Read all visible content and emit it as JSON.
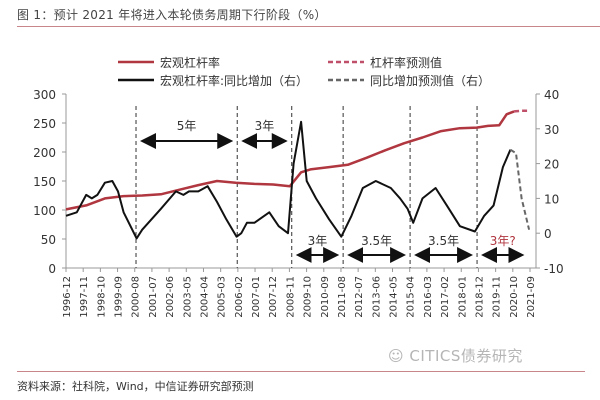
{
  "title": "图 1：预计 2021 年将进入本轮债务周期下行阶段（%）",
  "source": "资料来源：社科院，Wind，中信证券研究部预测",
  "watermark": "CITICS债券研究",
  "colors": {
    "leverage": "#b0363f",
    "leverage_forecast": "#c0506a",
    "yoy": "#111111",
    "yoy_forecast": "#666666",
    "axis": "#999999",
    "rule": "#c9868a"
  },
  "legend": [
    {
      "label": "宏观杠杆率",
      "style": "solid",
      "color": "#b0363f"
    },
    {
      "label": "杠杆率预测值",
      "style": "dashed",
      "color": "#c0506a"
    },
    {
      "label": "宏观杠杆率:同比增加（右）",
      "style": "solid",
      "color": "#111111"
    },
    {
      "label": "同比增加预测值（右）",
      "style": "dashed",
      "color": "#666666"
    }
  ],
  "chart_data": {
    "type": "line",
    "title": "预计 2021 年将进入本轮债务周期下行阶段（%）",
    "xlabel": "",
    "ylabel_left": "%",
    "ylabel_right": "%",
    "ylim_left": [
      0,
      300
    ],
    "ylim_right": [
      -10,
      40
    ],
    "yticks_left": [
      0,
      50,
      100,
      150,
      200,
      250,
      300
    ],
    "yticks_right": [
      -10,
      0,
      10,
      20,
      30,
      40
    ],
    "x_tick_labels": [
      "1996-12",
      "1997-11",
      "1998-10",
      "1999-09",
      "2000-08",
      "2001-07",
      "2002-06",
      "2003-05",
      "2004-04",
      "2005-03",
      "2006-02",
      "2007-01",
      "2007-12",
      "2008-11",
      "2009-10",
      "2010-09",
      "2011-08",
      "2012-07",
      "2013-06",
      "2014-05",
      "2015-04",
      "2016-03",
      "2017-02",
      "2018-01",
      "2018-12",
      "2019-11",
      "2020-10",
      "2021-09"
    ],
    "grid": false,
    "legend_position": "top",
    "series": [
      {
        "name": "宏观杠杆率",
        "axis": "left",
        "style": "solid",
        "x": [
          1996.92,
          1998.0,
          1999.0,
          2000.0,
          2001.0,
          2002.0,
          2003.0,
          2004.0,
          2005.0,
          2006.0,
          2007.0,
          2008.0,
          2008.9,
          2009.5,
          2010.0,
          2011.0,
          2012.0,
          2013.0,
          2014.0,
          2015.0,
          2016.0,
          2017.0,
          2018.0,
          2018.9,
          2019.5,
          2020.1,
          2020.5,
          2020.9
        ],
        "values": [
          101,
          108,
          120,
          124,
          125,
          127,
          135,
          143,
          150,
          147,
          145,
          144,
          141,
          165,
          170,
          174,
          178,
          190,
          203,
          215,
          225,
          236,
          241,
          242,
          245,
          246,
          265,
          270
        ]
      },
      {
        "name": "杠杆率预测值",
        "axis": "left",
        "style": "dashed",
        "x": [
          2020.9,
          2021.3,
          2021.75
        ],
        "values": [
          270,
          271,
          271
        ]
      },
      {
        "name": "宏观杠杆率:同比增加（右）",
        "axis": "right",
        "style": "solid",
        "x": [
          1996.92,
          1997.5,
          1998.0,
          1998.3,
          1998.6,
          1999.0,
          1999.4,
          1999.7,
          2000.0,
          2000.7,
          2001.0,
          2002.0,
          2002.8,
          2003.2,
          2003.5,
          2004.0,
          2004.5,
          2005.0,
          2005.5,
          2006.05,
          2006.3,
          2006.6,
          2007.0,
          2007.8,
          2008.3,
          2008.8,
          2009.1,
          2009.5,
          2009.8,
          2010.3,
          2011.0,
          2011.65,
          2012.2,
          2012.8,
          2013.5,
          2014.3,
          2014.8,
          2015.2,
          2015.5,
          2016.0,
          2016.7,
          2017.3,
          2018.0,
          2018.8,
          2019.3,
          2019.8,
          2020.3,
          2020.7
        ],
        "values": [
          5,
          6,
          11,
          10,
          11,
          14.5,
          15,
          12,
          6,
          -1.5,
          1,
          7,
          12,
          11,
          12,
          12,
          13.5,
          9,
          4,
          -1,
          0,
          3,
          3,
          6,
          2,
          0,
          20,
          32,
          15,
          10,
          4,
          -1,
          5,
          13,
          15,
          13,
          10,
          7,
          3,
          10,
          13,
          8,
          2,
          0.5,
          5,
          8,
          19,
          24
        ]
      },
      {
        "name": "同比增加预测值（右）",
        "axis": "right",
        "style": "dashed",
        "x": [
          2020.7,
          2021.0,
          2021.3,
          2021.7
        ],
        "values": [
          24,
          23,
          10,
          1
        ]
      }
    ],
    "vertical_markers": [
      "2000-09",
      "2006-02",
      "2009-01",
      "2011-10",
      "2015-05",
      "2018-12"
    ],
    "annotations": [
      {
        "text": "5年",
        "span": [
          "2000-09",
          "2006-02"
        ],
        "position": "upper"
      },
      {
        "text": "3年",
        "span": [
          "2006-02",
          "2009-01"
        ],
        "position": "upper"
      },
      {
        "text": "3年",
        "span": [
          "2009-01",
          "2011-10"
        ],
        "position": "lower"
      },
      {
        "text": "3.5年",
        "span": [
          "2011-10",
          "2015-05"
        ],
        "position": "lower"
      },
      {
        "text": "3.5年",
        "span": [
          "2015-05",
          "2018-12"
        ],
        "position": "lower"
      },
      {
        "text": "3年?",
        "span": [
          "2018-12",
          "2021-09"
        ],
        "position": "lower",
        "color": "#b0363f"
      }
    ]
  }
}
